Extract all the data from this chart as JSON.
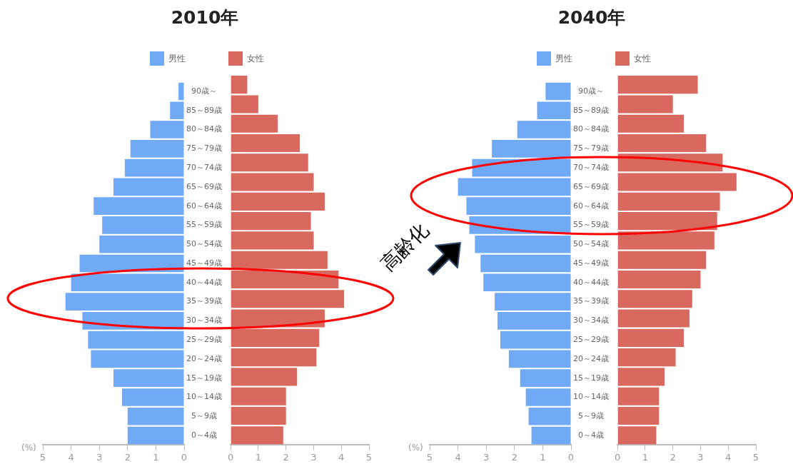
{
  "chart_data": [
    {
      "type": "bar",
      "orientation": "horizontal",
      "title": "2010年",
      "xlabel": "(%)",
      "legend": "top",
      "grid": false,
      "categories": [
        "90歳～",
        "85～89歳",
        "80～84歳",
        "75～79歳",
        "70～74歳",
        "65～69歳",
        "60～64歳",
        "55～59歳",
        "50～54歳",
        "45～49歳",
        "40～44歳",
        "35～39歳",
        "30～34歳",
        "25～29歳",
        "20～24歳",
        "15～19歳",
        "10～14歳",
        "5～9歳",
        "0～4歳"
      ],
      "series": [
        {
          "name": "男性",
          "color": "#70aaf6",
          "values": [
            0.2,
            0.5,
            1.2,
            1.9,
            2.1,
            2.5,
            3.2,
            2.9,
            3.0,
            3.7,
            4.0,
            4.2,
            3.6,
            3.4,
            3.3,
            2.5,
            2.2,
            2.0,
            2.0
          ]
        }
      ],
      "xlim": [
        5,
        0
      ],
      "xticks": [
        5,
        4,
        3,
        2,
        1,
        0
      ]
    },
    {
      "type": "bar",
      "orientation": "horizontal",
      "legend": "top",
      "grid": false,
      "tick_labels": "x",
      "series": [
        {
          "name": "女性",
          "color": "#d9685e",
          "values": [
            0.6,
            1.0,
            1.7,
            2.5,
            2.8,
            3.0,
            3.4,
            2.9,
            3.0,
            3.5,
            3.9,
            4.1,
            3.4,
            3.2,
            3.1,
            2.4,
            2.0,
            2.0,
            1.9
          ]
        }
      ],
      "xlim": [
        0,
        5
      ],
      "xticks": [
        0,
        1,
        2,
        3,
        4,
        5
      ]
    },
    {
      "type": "bar",
      "orientation": "horizontal",
      "title": "2040年",
      "xlabel": "(%)",
      "legend": "top",
      "grid": false,
      "annotations": [
        "高齢化"
      ],
      "categories": [
        "90歳～",
        "85～89歳",
        "80～84歳",
        "75～79歳",
        "70～74歳",
        "65～69歳",
        "60～64歳",
        "55～59歳",
        "50～54歳",
        "45～49歳",
        "40～44歳",
        "35～39歳",
        "30～34歳",
        "25～29歳",
        "20～24歳",
        "15～19歳",
        "10～14歳",
        "5～9歳",
        "0～4歳"
      ],
      "series": [
        {
          "name": "男性",
          "color": "#70aaf6",
          "values": [
            0.9,
            1.2,
            1.9,
            2.8,
            3.5,
            4.0,
            3.7,
            3.6,
            3.4,
            3.2,
            3.1,
            2.7,
            2.6,
            2.5,
            2.2,
            1.8,
            1.6,
            1.5,
            1.4
          ]
        }
      ],
      "xlim": [
        5,
        0
      ],
      "xticks": [
        5,
        4,
        3,
        2,
        1,
        0
      ]
    },
    {
      "type": "bar",
      "orientation": "horizontal",
      "legend": "top",
      "grid": false,
      "tick_labels": "x",
      "series": [
        {
          "name": "女性",
          "color": "#d9685e",
          "values": [
            2.9,
            2.0,
            2.4,
            3.2,
            3.8,
            4.3,
            3.7,
            3.6,
            3.5,
            3.2,
            3.0,
            2.7,
            2.6,
            2.4,
            2.1,
            1.7,
            1.5,
            1.5,
            1.4
          ]
        }
      ],
      "xlim": [
        0,
        5
      ],
      "xticks": [
        0,
        1,
        2,
        3,
        4,
        5
      ]
    }
  ]
}
